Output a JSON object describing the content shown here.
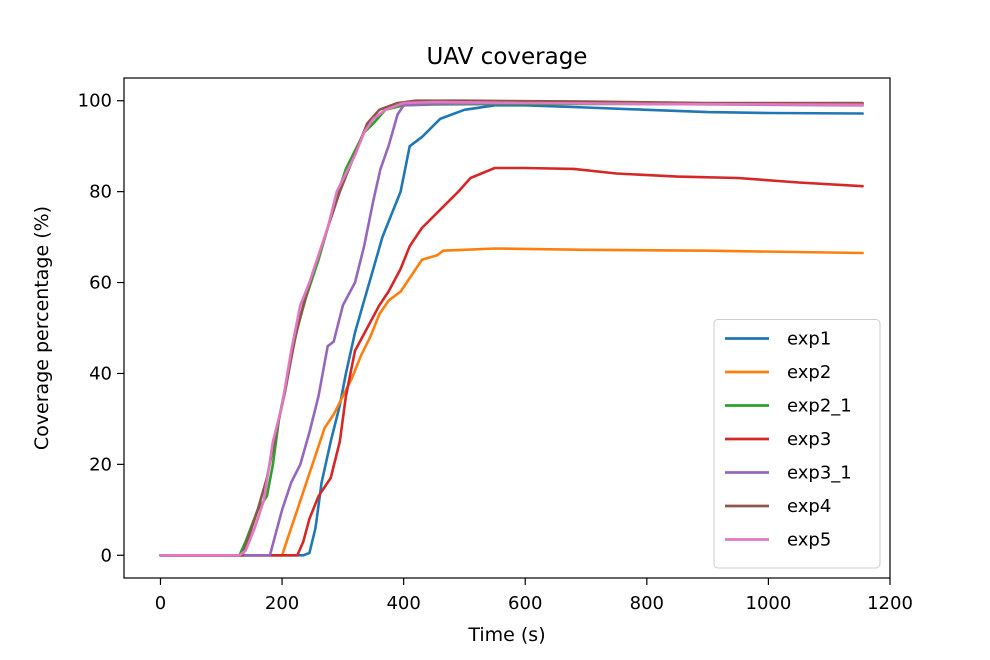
{
  "chart_data": {
    "type": "line",
    "title": "UAV coverage",
    "xlabel": "Time (s)",
    "ylabel": "Coverage percentage (%)",
    "xlim": [
      -60,
      1200
    ],
    "ylim": [
      -5,
      105
    ],
    "xticks": [
      0,
      200,
      400,
      600,
      800,
      1000,
      1200
    ],
    "yticks": [
      0,
      20,
      40,
      60,
      80,
      100
    ],
    "grid": false,
    "legend": "lower-right",
    "series": [
      {
        "name": "exp1",
        "color": "#1f77b4",
        "points": [
          [
            0,
            0
          ],
          [
            235,
            0
          ],
          [
            245,
            0.5
          ],
          [
            255,
            6
          ],
          [
            265,
            16
          ],
          [
            280,
            25
          ],
          [
            295,
            33
          ],
          [
            305,
            40
          ],
          [
            320,
            49
          ],
          [
            335,
            56
          ],
          [
            350,
            63
          ],
          [
            365,
            70
          ],
          [
            380,
            75
          ],
          [
            395,
            80
          ],
          [
            410,
            90
          ],
          [
            430,
            92
          ],
          [
            460,
            96
          ],
          [
            500,
            98
          ],
          [
            550,
            99
          ],
          [
            600,
            99
          ],
          [
            700,
            98.5
          ],
          [
            800,
            98
          ],
          [
            900,
            97.5
          ],
          [
            1000,
            97.3
          ],
          [
            1155,
            97.2
          ]
        ]
      },
      {
        "name": "exp2",
        "color": "#ff7f0e",
        "points": [
          [
            0,
            0
          ],
          [
            200,
            0
          ],
          [
            210,
            4
          ],
          [
            225,
            10
          ],
          [
            240,
            16
          ],
          [
            255,
            22
          ],
          [
            270,
            28
          ],
          [
            285,
            31
          ],
          [
            300,
            35
          ],
          [
            315,
            39
          ],
          [
            330,
            44
          ],
          [
            345,
            48
          ],
          [
            360,
            53
          ],
          [
            375,
            56
          ],
          [
            395,
            58
          ],
          [
            415,
            62
          ],
          [
            430,
            65
          ],
          [
            455,
            66
          ],
          [
            465,
            67
          ],
          [
            500,
            67.2
          ],
          [
            550,
            67.5
          ],
          [
            700,
            67.2
          ],
          [
            900,
            67
          ],
          [
            1155,
            66.5
          ]
        ]
      },
      {
        "name": "exp2_1",
        "color": "#2ca02c",
        "points": [
          [
            0,
            0
          ],
          [
            130,
            0
          ],
          [
            140,
            3
          ],
          [
            160,
            10
          ],
          [
            175,
            13
          ],
          [
            185,
            20
          ],
          [
            195,
            30
          ],
          [
            210,
            40
          ],
          [
            225,
            50
          ],
          [
            240,
            57
          ],
          [
            260,
            65
          ],
          [
            275,
            72
          ],
          [
            290,
            79
          ],
          [
            305,
            85
          ],
          [
            320,
            89
          ],
          [
            335,
            93
          ],
          [
            350,
            95
          ],
          [
            370,
            98
          ],
          [
            400,
            99
          ],
          [
            450,
            99.2
          ],
          [
            600,
            99.3
          ],
          [
            800,
            99.3
          ],
          [
            1155,
            99.2
          ]
        ]
      },
      {
        "name": "exp3",
        "color": "#d62728",
        "points": [
          [
            0,
            0
          ],
          [
            225,
            0
          ],
          [
            235,
            3
          ],
          [
            245,
            8
          ],
          [
            260,
            13
          ],
          [
            280,
            17
          ],
          [
            295,
            25
          ],
          [
            305,
            35
          ],
          [
            320,
            45
          ],
          [
            340,
            50
          ],
          [
            360,
            55
          ],
          [
            375,
            58
          ],
          [
            395,
            63
          ],
          [
            410,
            68
          ],
          [
            430,
            72
          ],
          [
            460,
            76
          ],
          [
            490,
            80
          ],
          [
            510,
            83
          ],
          [
            550,
            85.2
          ],
          [
            600,
            85.2
          ],
          [
            680,
            85
          ],
          [
            750,
            84
          ],
          [
            850,
            83.3
          ],
          [
            950,
            83
          ],
          [
            1050,
            82
          ],
          [
            1155,
            81.2
          ]
        ]
      },
      {
        "name": "exp3_1",
        "color": "#9467bd",
        "points": [
          [
            0,
            0
          ],
          [
            180,
            0
          ],
          [
            190,
            5
          ],
          [
            200,
            10
          ],
          [
            215,
            16
          ],
          [
            230,
            20
          ],
          [
            245,
            27
          ],
          [
            260,
            35
          ],
          [
            275,
            46
          ],
          [
            285,
            47
          ],
          [
            300,
            55
          ],
          [
            320,
            60
          ],
          [
            335,
            68
          ],
          [
            350,
            78
          ],
          [
            362,
            85
          ],
          [
            375,
            90
          ],
          [
            390,
            97
          ],
          [
            400,
            99
          ],
          [
            450,
            99.3
          ],
          [
            600,
            99.5
          ],
          [
            800,
            99.3
          ],
          [
            1000,
            99.1
          ],
          [
            1155,
            99
          ]
        ]
      },
      {
        "name": "exp4",
        "color": "#8c564b",
        "points": [
          [
            0,
            0
          ],
          [
            135,
            0
          ],
          [
            145,
            4
          ],
          [
            160,
            10
          ],
          [
            175,
            17
          ],
          [
            190,
            27
          ],
          [
            205,
            36
          ],
          [
            220,
            47
          ],
          [
            235,
            55
          ],
          [
            250,
            62
          ],
          [
            265,
            68
          ],
          [
            280,
            74
          ],
          [
            295,
            80
          ],
          [
            310,
            85
          ],
          [
            325,
            90
          ],
          [
            340,
            95
          ],
          [
            360,
            98
          ],
          [
            390,
            99.5
          ],
          [
            420,
            100
          ],
          [
            500,
            100
          ],
          [
            700,
            99.8
          ],
          [
            900,
            99.5
          ],
          [
            1155,
            99.5
          ]
        ]
      },
      {
        "name": "exp5",
        "color": "#e377c2",
        "points": [
          [
            0,
            0
          ],
          [
            130,
            0
          ],
          [
            140,
            1
          ],
          [
            155,
            6
          ],
          [
            170,
            12
          ],
          [
            185,
            25
          ],
          [
            200,
            33
          ],
          [
            215,
            45
          ],
          [
            230,
            55
          ],
          [
            245,
            60
          ],
          [
            260,
            66
          ],
          [
            275,
            72
          ],
          [
            290,
            80
          ],
          [
            305,
            84
          ],
          [
            320,
            88
          ],
          [
            335,
            93
          ],
          [
            350,
            96
          ],
          [
            370,
            98
          ],
          [
            400,
            99.5
          ],
          [
            450,
            99.7
          ],
          [
            600,
            99.5
          ],
          [
            800,
            99.3
          ],
          [
            1000,
            99.2
          ],
          [
            1155,
            99.1
          ]
        ]
      }
    ]
  }
}
